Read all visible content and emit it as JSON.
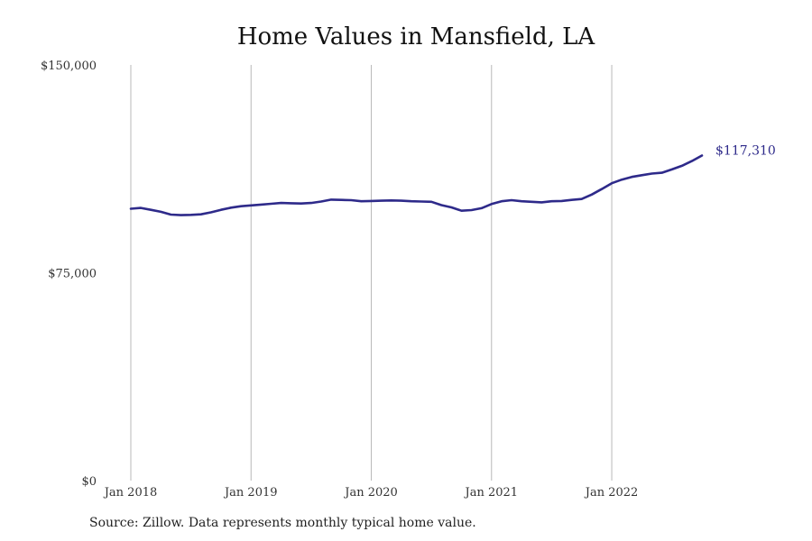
{
  "chart_data": {
    "type": "line",
    "title": "Home Values in Mansfield, LA",
    "xlabel": "",
    "ylabel": "",
    "y_ticks": [
      {
        "value": 0,
        "label": "$0"
      },
      {
        "value": 75000,
        "label": "$75,000"
      },
      {
        "value": 150000,
        "label": "$150,000"
      }
    ],
    "ylim": [
      0,
      150000
    ],
    "x_ticks": [
      {
        "value": "2018-01",
        "label": "Jan 2018"
      },
      {
        "value": "2019-01",
        "label": "Jan 2019"
      },
      {
        "value": "2020-01",
        "label": "Jan 2020"
      },
      {
        "value": "2021-01",
        "label": "Jan 2021"
      },
      {
        "value": "2022-01",
        "label": "Jan 2022"
      }
    ],
    "xlim": [
      "2018-01",
      "2022-10"
    ],
    "grid": {
      "vertical": true,
      "horizontal": false
    },
    "line_color": "#2e2a8a",
    "end_label": "$117,310",
    "series": [
      {
        "x": [
          "2018-01",
          "2018-02",
          "2018-03",
          "2018-04",
          "2018-05",
          "2018-06",
          "2018-07",
          "2018-08",
          "2018-09",
          "2018-10",
          "2018-11",
          "2018-12",
          "2019-01",
          "2019-02",
          "2019-03",
          "2019-04",
          "2019-05",
          "2019-06",
          "2019-07",
          "2019-08",
          "2019-09",
          "2019-10",
          "2019-11",
          "2019-12",
          "2020-01",
          "2020-02",
          "2020-03",
          "2020-04",
          "2020-05",
          "2020-06",
          "2020-07",
          "2020-08",
          "2020-09",
          "2020-10",
          "2020-11",
          "2020-12",
          "2021-01",
          "2021-02",
          "2021-03",
          "2021-04",
          "2021-05",
          "2021-06",
          "2021-07",
          "2021-08",
          "2021-09",
          "2021-10",
          "2021-11",
          "2021-12",
          "2022-01",
          "2022-02",
          "2022-03",
          "2022-04",
          "2022-05",
          "2022-06",
          "2022-07",
          "2022-08",
          "2022-09",
          "2022-10"
        ],
        "values": [
          98100,
          98400,
          97700,
          97000,
          96000,
          95800,
          95900,
          96100,
          96800,
          97700,
          98500,
          99000,
          99300,
          99600,
          99900,
          100200,
          100100,
          100000,
          100200,
          100700,
          101400,
          101300,
          101200,
          100800,
          100900,
          101000,
          101100,
          101000,
          100800,
          100700,
          100600,
          99400,
          98600,
          97400,
          97600,
          98300,
          99800,
          100800,
          101200,
          100800,
          100600,
          100400,
          100800,
          100900,
          101300,
          101600,
          103200,
          105200,
          107300,
          108600,
          109600,
          110200,
          110800,
          111100,
          112300,
          113600,
          115300,
          117310
        ]
      }
    ]
  },
  "source": "Source: Zillow. Data represents monthly typical home value."
}
